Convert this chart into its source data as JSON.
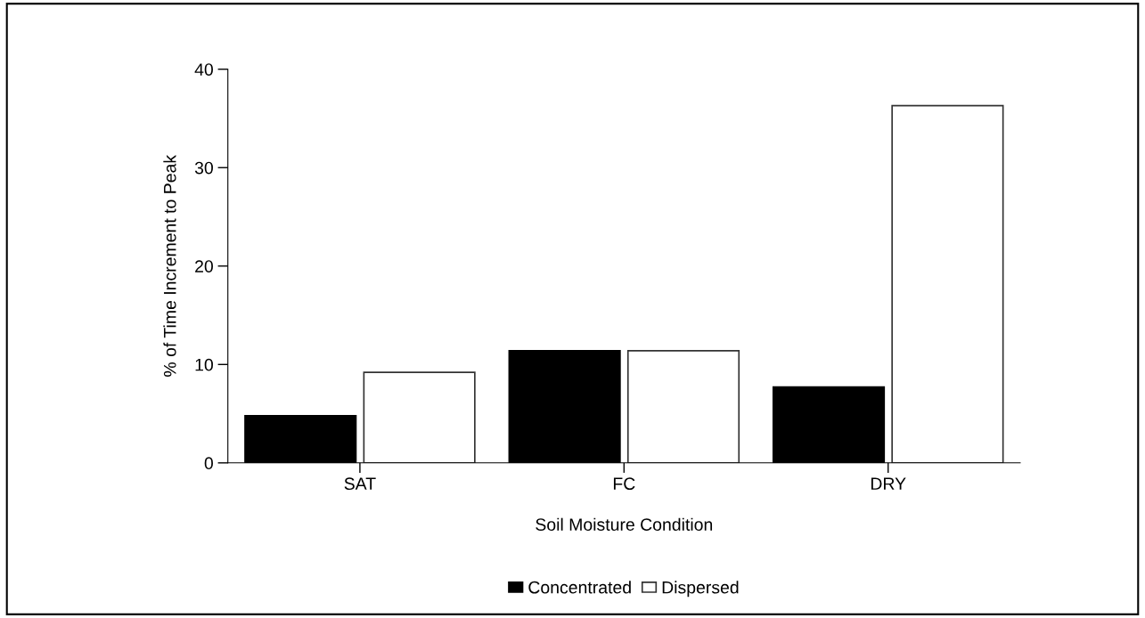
{
  "chart_data": {
    "type": "bar",
    "xlabel": "Soil Moisture Condition",
    "ylabel": "% of Time Increment to Peak",
    "categories": [
      "SAT",
      "FC",
      "DRY"
    ],
    "series": [
      {
        "name": "Concentrated",
        "color": "#000000",
        "values": [
          4.8,
          11.4,
          7.7
        ]
      },
      {
        "name": "Dispersed",
        "color": "#ffffff",
        "values": [
          9.2,
          11.4,
          36.3
        ]
      }
    ],
    "ylim": [
      0,
      40
    ],
    "yticks": [
      0,
      10,
      20,
      30,
      40
    ],
    "grid": false,
    "legend": "bottom"
  }
}
